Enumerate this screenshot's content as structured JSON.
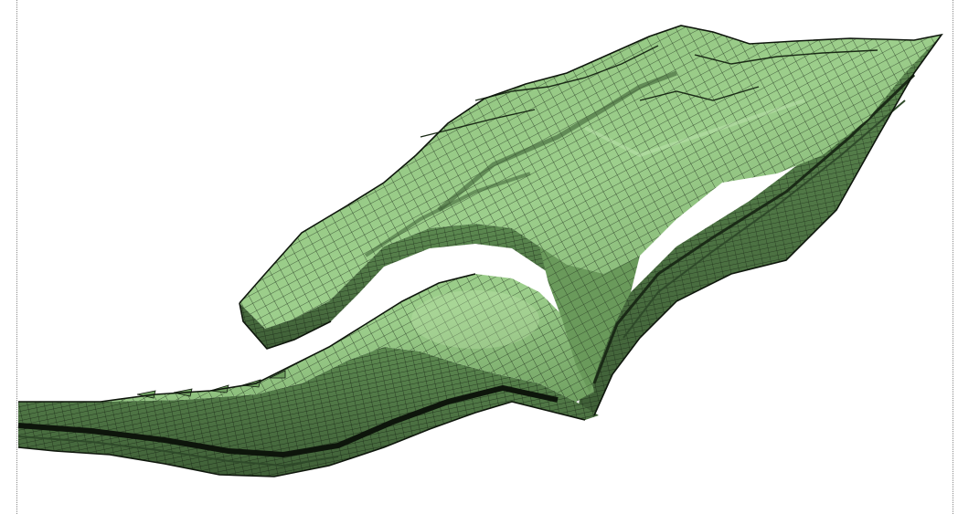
{
  "scene": {
    "subject": "geological-grid-model",
    "colors": {
      "background": "#ffffff",
      "surface_light": "#9dcf8c",
      "surface_mid": "#7fb26e",
      "surface_dark": "#4f7a45",
      "side_face": "#4a6b3f",
      "layer_band": "#2f4a2a",
      "mesh_line": "#101a0e",
      "frame": "#8a8a8a"
    }
  }
}
